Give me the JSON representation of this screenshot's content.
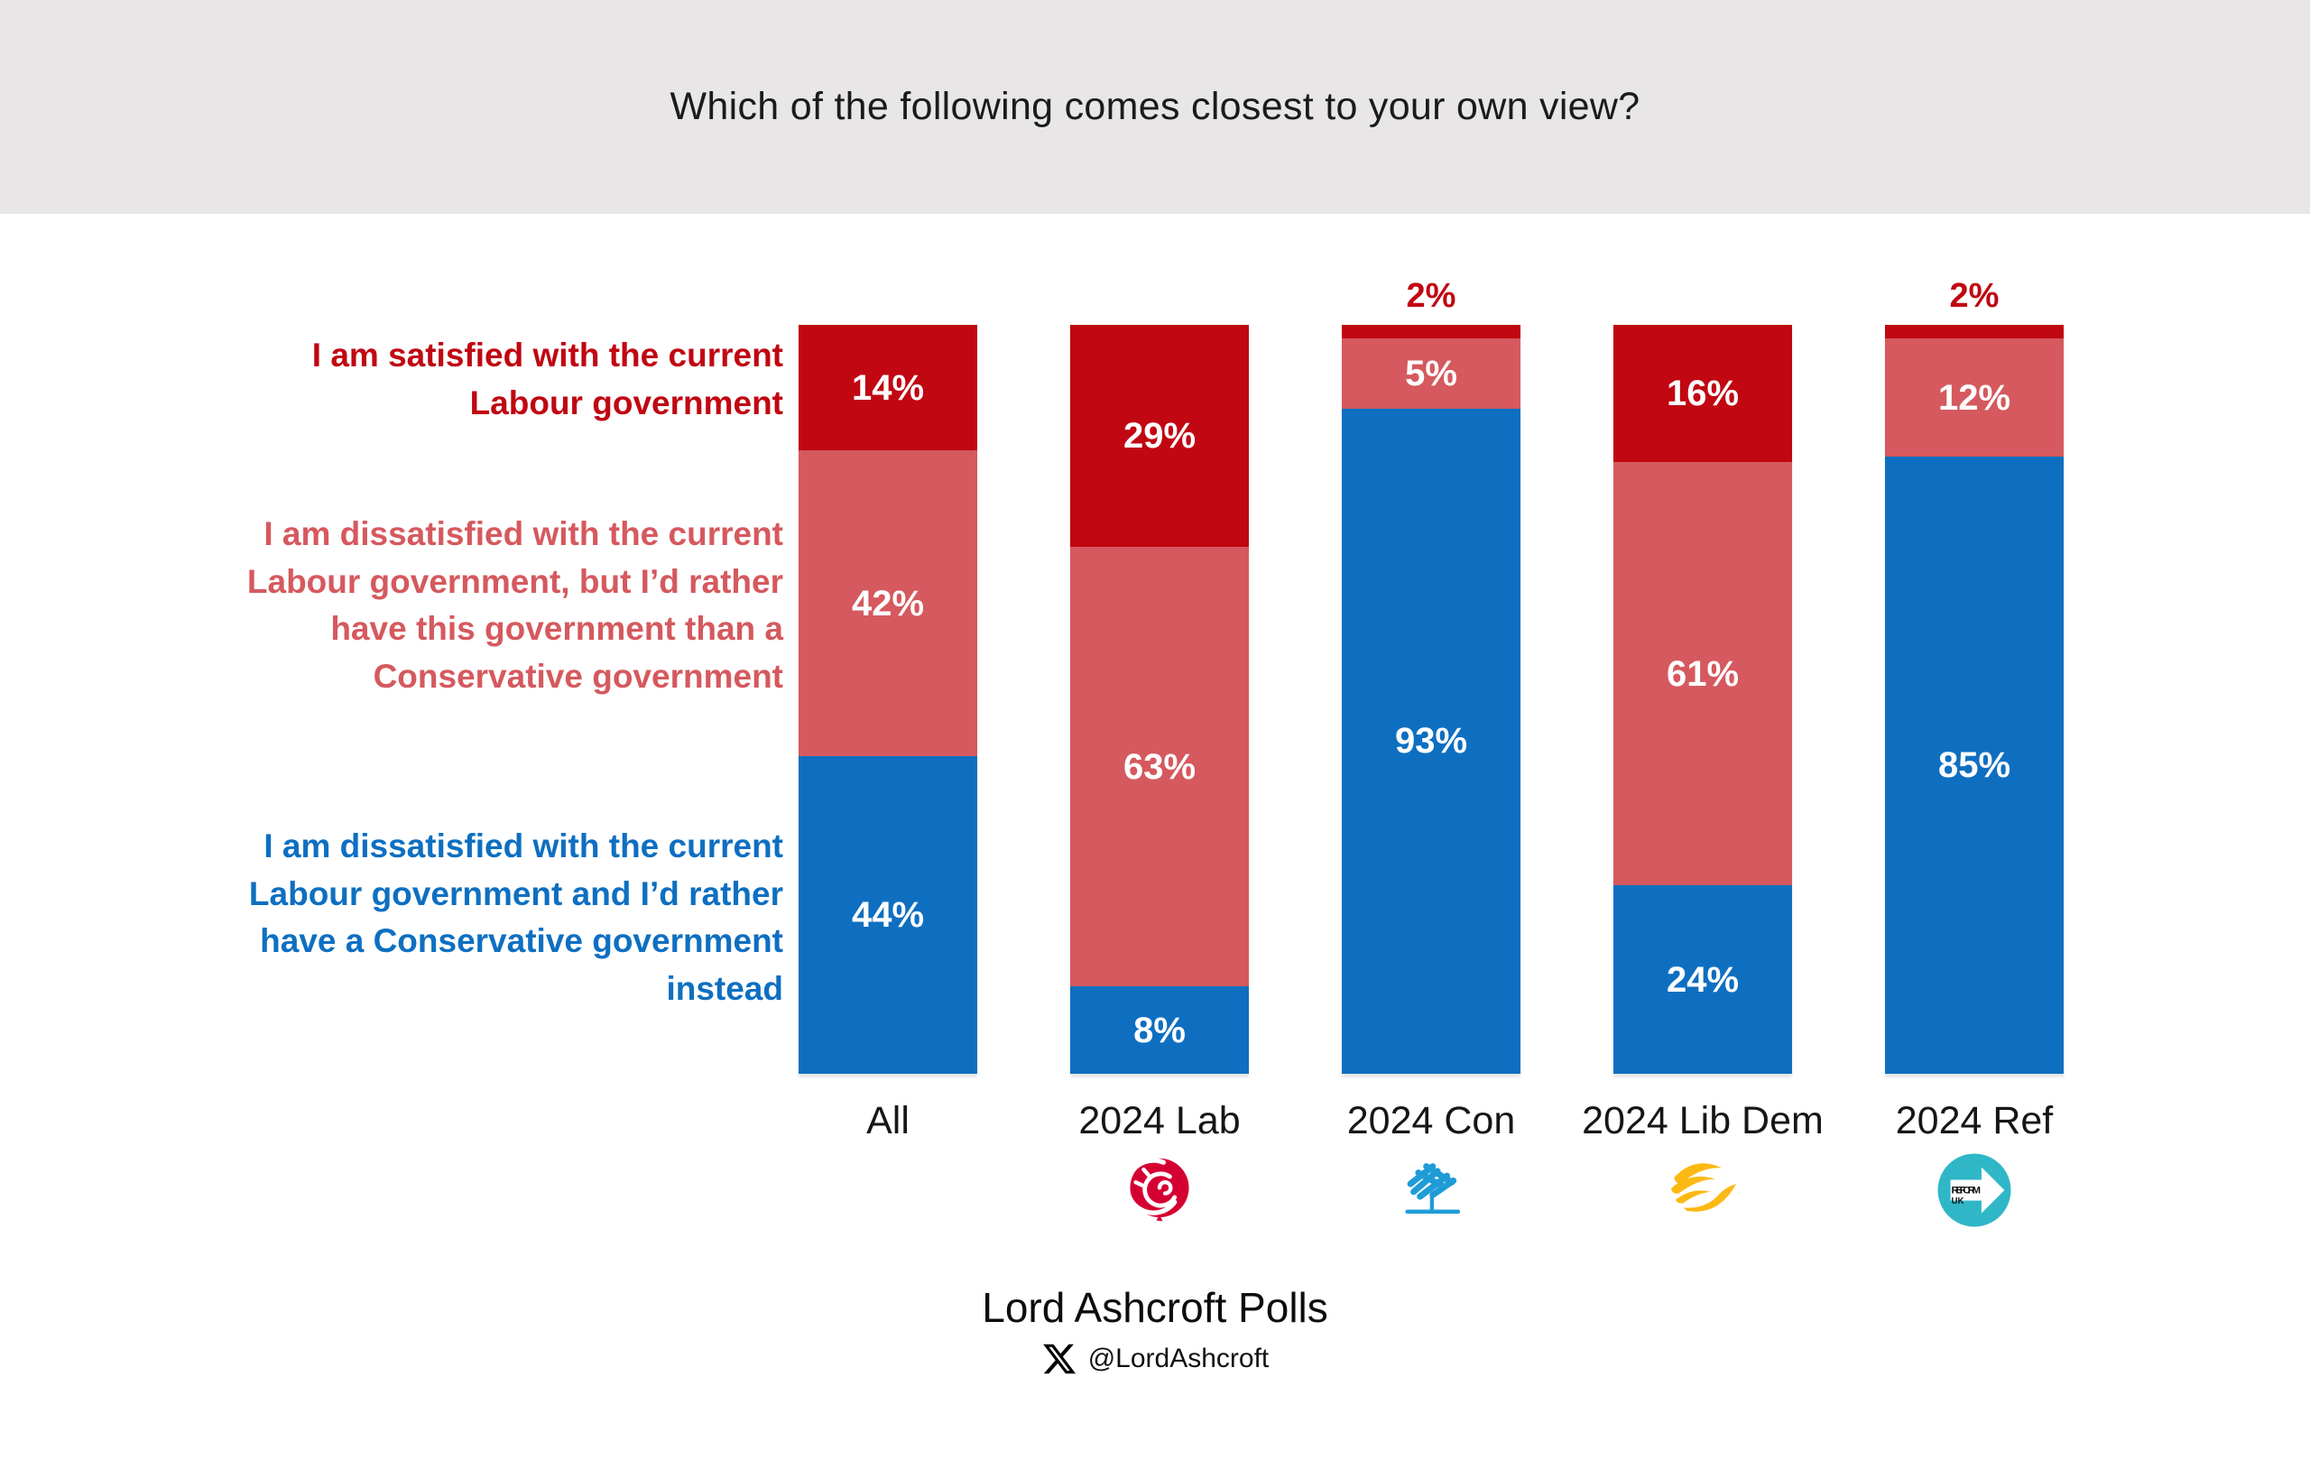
{
  "header": {
    "title": "Which of the following comes closest to your own view?",
    "background_color": "#e8e6e7"
  },
  "chart_data": {
    "type": "bar",
    "variant": "stacked-100",
    "orientation": "vertical",
    "unit": "%",
    "grid": false,
    "legend_position": "row-labels-left",
    "categories": [
      "All",
      "2024 Lab",
      "2024 Con",
      "2024 Lib Dem",
      "2024 Ref"
    ],
    "series": [
      {
        "name": "I am satisfied with the current Labour government",
        "name_lines": "I am satisfied with the current\nLabour government",
        "color": "#c00712",
        "values": [
          14,
          29,
          2,
          16,
          2
        ]
      },
      {
        "name": "I am dissatisfied with the current Labour government, but I’d rather have this government than a Conservative government",
        "name_lines": "I am dissatisfied with the current\nLabour government, but I’d rather\nhave this government than a\nConservative government",
        "color": "#d5595e",
        "values": [
          42,
          63,
          5,
          61,
          12
        ]
      },
      {
        "name": "I am dissatisfied with the current Labour government and I’d rather have a Conservative government instead",
        "name_lines": "I am dissatisfied with the current\nLabour government and I’d rather\nhave a Conservative government\ninstead",
        "color": "#0e6fc1",
        "values": [
          44,
          8,
          93,
          24,
          85
        ]
      }
    ],
    "value_label_format": "{v}%",
    "outside_label_max": 3,
    "outside_label_color": "#c00712",
    "inside_label_color": "#ffffff"
  },
  "category_logos": [
    null,
    "labour-rose",
    "conservative-tree",
    "libdem-bird",
    "reform-uk"
  ],
  "logo_colors": {
    "labour_red": "#d50032",
    "conservative_blue": "#1f9cd8",
    "libdem_gold": "#fdb913",
    "reform_teal": "#2fb7c7"
  },
  "reform_logo_text": {
    "line1": "REFORM",
    "line2": "UK"
  },
  "footer": {
    "title": "Lord Ashcroft Polls",
    "x_handle": "@LordAshcroft"
  }
}
